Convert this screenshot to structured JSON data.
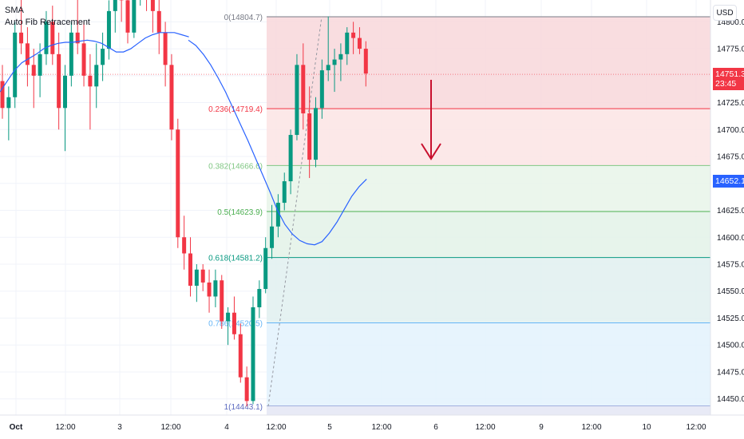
{
  "legend": {
    "line1": "SMA",
    "line2": "Auto Fib Retracement"
  },
  "currency_button": "USD",
  "last_price": {
    "value": "14751.3",
    "countdown": "23:45",
    "color": "#f23645"
  },
  "sma_price": {
    "value": "14652.1",
    "color": "#2962ff"
  },
  "colors": {
    "up": "#089981",
    "down": "#f23645",
    "sma": "#2962ff",
    "arrow": "#c8102e"
  },
  "chart_data": {
    "type": "candlestick",
    "y_axis": {
      "ticks": [
        14450.0,
        14475.0,
        14500.0,
        14525.0,
        14550.0,
        14575.0,
        14600.0,
        14625.0,
        14650.0,
        14675.0,
        14700.0,
        14725.0,
        14750.0,
        14775.0,
        14800.0
      ]
    },
    "x_axis": {
      "tick_labels": [
        "Oct",
        "12:00",
        "3",
        "12:00",
        "4",
        "12:00",
        "5",
        "12:00",
        "6",
        "12:00",
        "9",
        "12:00",
        "10",
        "12:00"
      ]
    },
    "fib_levels": [
      {
        "label": "0(14804.7)",
        "price": 14804.7,
        "line": "#787b86",
        "fill": "#f8d7da"
      },
      {
        "label": "0.236(14719.4)",
        "price": 14719.4,
        "line": "#f23645",
        "fill": "#fce4e4"
      },
      {
        "label": "0.382(14666.6)",
        "price": 14666.6,
        "line": "#81c784",
        "fill": "#e8f5e9"
      },
      {
        "label": "0.5(14623.9)",
        "price": 14623.9,
        "line": "#4caf50",
        "fill": "#e3f2e7"
      },
      {
        "label": "0.618(14581.2)",
        "price": 14581.2,
        "line": "#089981",
        "fill": "#e0f0f0"
      },
      {
        "label": "0.786(14520.5)",
        "price": 14520.5,
        "line": "#64b5f6",
        "fill": "#e3f2fd"
      },
      {
        "label": "1(14443.1)",
        "price": 14443.1,
        "line": "#5c6bc0",
        "fill": "#ebebed"
      }
    ],
    "candles": [
      [
        14745,
        14760,
        14710,
        14720
      ],
      [
        14720,
        14740,
        14690,
        14730
      ],
      [
        14730,
        14800,
        14720,
        14790
      ],
      [
        14790,
        14830,
        14770,
        14780
      ],
      [
        14780,
        14795,
        14740,
        14760
      ],
      [
        14760,
        14775,
        14720,
        14750
      ],
      [
        14750,
        14780,
        14730,
        14770
      ],
      [
        14770,
        14810,
        14760,
        14800
      ],
      [
        14800,
        14815,
        14760,
        14770
      ],
      [
        14770,
        14790,
        14700,
        14720
      ],
      [
        14720,
        14760,
        14680,
        14750
      ],
      [
        14750,
        14800,
        14740,
        14790
      ],
      [
        14790,
        14830,
        14770,
        14780
      ],
      [
        14780,
        14800,
        14740,
        14750
      ],
      [
        14750,
        14770,
        14700,
        14740
      ],
      [
        14740,
        14780,
        14720,
        14760
      ],
      [
        14760,
        14790,
        14745,
        14775
      ],
      [
        14775,
        14820,
        14765,
        14810
      ],
      [
        14810,
        14840,
        14790,
        14830
      ],
      [
        14830,
        14845,
        14800,
        14820
      ],
      [
        14820,
        14840,
        14780,
        14790
      ],
      [
        14790,
        14835,
        14785,
        14830
      ],
      [
        14830,
        14850,
        14815,
        14840
      ],
      [
        14840,
        14850,
        14810,
        14825
      ],
      [
        14825,
        14840,
        14790,
        14810
      ],
      [
        14810,
        14830,
        14770,
        14790
      ],
      [
        14790,
        14800,
        14740,
        14760
      ],
      [
        14760,
        14770,
        14690,
        14700
      ],
      [
        14700,
        14710,
        14590,
        14600
      ],
      [
        14600,
        14620,
        14570,
        14585
      ],
      [
        14585,
        14600,
        14545,
        14555
      ],
      [
        14555,
        14575,
        14540,
        14570
      ],
      [
        14570,
        14575,
        14550,
        14558
      ],
      [
        14558,
        14570,
        14530,
        14545
      ],
      [
        14545,
        14570,
        14535,
        14560
      ],
      [
        14560,
        14565,
        14515,
        14522
      ],
      [
        14522,
        14535,
        14500,
        14530
      ],
      [
        14530,
        14545,
        14505,
        14510
      ],
      [
        14510,
        14520,
        14465,
        14470
      ],
      [
        14470,
        14480,
        14443,
        14448
      ],
      [
        14448,
        14545,
        14445,
        14535
      ],
      [
        14535,
        14560,
        14525,
        14552
      ],
      [
        14552,
        14600,
        14548,
        14590
      ],
      [
        14590,
        14630,
        14580,
        14610
      ],
      [
        14610,
        14640,
        14600,
        14632
      ],
      [
        14632,
        14660,
        14625,
        14652
      ],
      [
        14652,
        14700,
        14640,
        14695
      ],
      [
        14695,
        14770,
        14690,
        14760
      ],
      [
        14760,
        14780,
        14700,
        14715
      ],
      [
        14715,
        14740,
        14655,
        14672
      ],
      [
        14672,
        14730,
        14665,
        14720
      ],
      [
        14720,
        14765,
        14710,
        14755
      ],
      [
        14755,
        14805,
        14745,
        14760
      ],
      [
        14760,
        14775,
        14735,
        14765
      ],
      [
        14765,
        14780,
        14745,
        14770
      ],
      [
        14770,
        14795,
        14760,
        14790
      ],
      [
        14790,
        14800,
        14770,
        14785
      ],
      [
        14785,
        14795,
        14770,
        14775
      ],
      [
        14775,
        14782,
        14740,
        14752
      ]
    ],
    "sma": [
      [
        14735,
        14745,
        14755,
        14762,
        14766,
        14770,
        14775,
        14778,
        14780,
        14781,
        14781,
        14782,
        14783,
        14782,
        14780,
        14776,
        14772,
        14772,
        14775,
        14780,
        14785,
        14788,
        14790,
        14790,
        14790,
        14788,
        14786
      ],
      [
        14783,
        14778,
        14770,
        14760,
        14748,
        14735,
        14720,
        14705,
        14690,
        14674,
        14658,
        14642,
        14625,
        14612,
        14603,
        14597,
        14594,
        14593,
        14596,
        14604,
        14614,
        14626,
        14638,
        14647,
        14654
      ]
    ],
    "annotations": {
      "arrow": "down"
    }
  }
}
